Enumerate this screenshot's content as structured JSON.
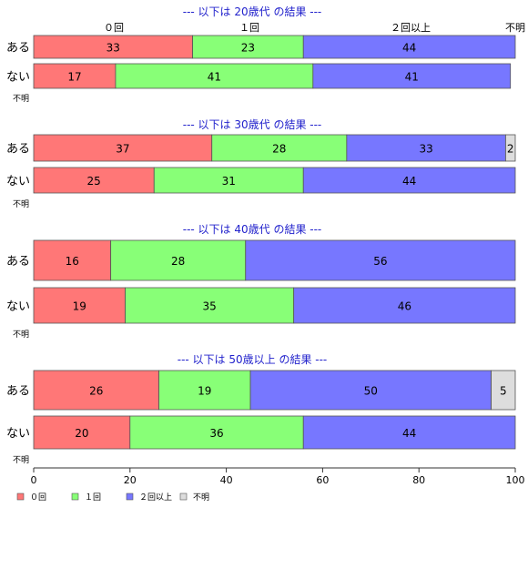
{
  "colors": {
    "zero": "#ff7777",
    "one": "#88ff77",
    "twoplus": "#7777ff",
    "unknown": "#dddddd",
    "title": "#2222cc",
    "axis": "#333333"
  },
  "header_labels": [
    "０回",
    "１回",
    "２回以上",
    "不明"
  ],
  "chart_data": {
    "type": "bar",
    "orientation": "horizontal",
    "stacked": true,
    "xlim": [
      0,
      100
    ],
    "xticks": [
      0,
      20,
      40,
      60,
      80,
      100
    ],
    "legend": [
      {
        "key": "zero",
        "label": "０回"
      },
      {
        "key": "one",
        "label": "１回"
      },
      {
        "key": "twoplus",
        "label": "２回以上"
      },
      {
        "key": "unknown",
        "label": "不明"
      }
    ],
    "legend_position": "bottom-left",
    "panels": [
      {
        "title": "--- 以下は 20歳代 の結果 ---",
        "rows": [
          {
            "label": "ある",
            "values": [
              33,
              23,
              44,
              0
            ]
          },
          {
            "label": "ない",
            "values": [
              17,
              41,
              41,
              0
            ]
          }
        ],
        "note": "不明"
      },
      {
        "title": "--- 以下は 30歳代 の結果 ---",
        "rows": [
          {
            "label": "ある",
            "values": [
              37,
              28,
              33,
              2
            ]
          },
          {
            "label": "ない",
            "values": [
              25,
              31,
              44,
              0
            ]
          }
        ],
        "note": "不明"
      },
      {
        "title": "--- 以下は 40歳代 の結果 ---",
        "rows": [
          {
            "label": "ある",
            "values": [
              16,
              28,
              56,
              0
            ]
          },
          {
            "label": "ない",
            "values": [
              19,
              35,
              46,
              0
            ]
          }
        ],
        "note": "不明"
      },
      {
        "title": "--- 以下は 50歳以上 の結果 ---",
        "rows": [
          {
            "label": "ある",
            "values": [
              26,
              19,
              50,
              5
            ]
          },
          {
            "label": "ない",
            "values": [
              20,
              36,
              44,
              0
            ]
          }
        ],
        "note": "不明"
      }
    ]
  }
}
